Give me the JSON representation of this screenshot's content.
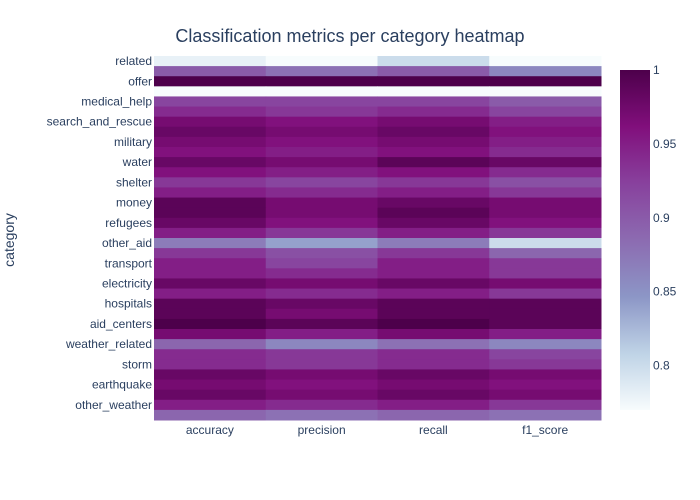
{
  "chart_data": {
    "type": "heatmap",
    "title": "Classification metrics per category heatmap",
    "xlabel": "",
    "ylabel": "category",
    "columns": [
      "accuracy",
      "precision",
      "recall",
      "f1_score"
    ],
    "rows": [
      {
        "category": "related",
        "values": [
          0.78,
          0.77,
          0.8,
          0.77
        ]
      },
      {
        "category": "",
        "values": [
          0.9,
          0.88,
          0.9,
          0.86
        ]
      },
      {
        "category": "offer",
        "values": [
          1.0,
          1.0,
          1.0,
          1.0
        ]
      },
      {
        "category": "",
        "values": [
          0.77,
          0.77,
          0.77,
          0.77
        ]
      },
      {
        "category": "medical_help",
        "values": [
          0.92,
          0.92,
          0.92,
          0.9
        ]
      },
      {
        "category": "",
        "values": [
          0.94,
          0.93,
          0.94,
          0.92
        ]
      },
      {
        "category": "search_and_rescue",
        "values": [
          0.97,
          0.96,
          0.97,
          0.95
        ]
      },
      {
        "category": "",
        "values": [
          0.98,
          0.97,
          0.98,
          0.96
        ]
      },
      {
        "category": "military",
        "values": [
          0.97,
          0.96,
          0.97,
          0.95
        ]
      },
      {
        "category": "",
        "values": [
          0.96,
          0.95,
          0.96,
          0.94
        ]
      },
      {
        "category": "water",
        "values": [
          0.98,
          0.97,
          0.99,
          0.98
        ]
      },
      {
        "category": "",
        "values": [
          0.96,
          0.95,
          0.96,
          0.94
        ]
      },
      {
        "category": "shelter",
        "values": [
          0.93,
          0.92,
          0.93,
          0.91
        ]
      },
      {
        "category": "",
        "values": [
          0.95,
          0.94,
          0.95,
          0.93
        ]
      },
      {
        "category": "money",
        "values": [
          0.99,
          0.97,
          0.98,
          0.97
        ]
      },
      {
        "category": "",
        "values": [
          0.99,
          0.97,
          0.99,
          0.97
        ]
      },
      {
        "category": "refugees",
        "values": [
          0.98,
          0.96,
          0.98,
          0.96
        ]
      },
      {
        "category": "",
        "values": [
          0.95,
          0.93,
          0.95,
          0.93
        ]
      },
      {
        "category": "other_aid",
        "values": [
          0.87,
          0.84,
          0.87,
          0.8
        ]
      },
      {
        "category": "",
        "values": [
          0.93,
          0.91,
          0.93,
          0.89
        ]
      },
      {
        "category": "transport",
        "values": [
          0.95,
          0.92,
          0.95,
          0.93
        ]
      },
      {
        "category": "",
        "values": [
          0.95,
          0.94,
          0.95,
          0.93
        ]
      },
      {
        "category": "electricity",
        "values": [
          0.98,
          0.97,
          0.98,
          0.97
        ]
      },
      {
        "category": "",
        "values": [
          0.95,
          0.94,
          0.95,
          0.93
        ]
      },
      {
        "category": "hospitals",
        "values": [
          0.99,
          0.98,
          0.99,
          0.99
        ]
      },
      {
        "category": "",
        "values": [
          0.99,
          0.97,
          0.99,
          0.99
        ]
      },
      {
        "category": "aid_centers",
        "values": [
          1.0,
          0.99,
          1.0,
          0.99
        ]
      },
      {
        "category": "",
        "values": [
          0.97,
          0.95,
          0.97,
          0.95
        ]
      },
      {
        "category": "weather_related",
        "values": [
          0.89,
          0.86,
          0.88,
          0.86
        ]
      },
      {
        "category": "",
        "values": [
          0.94,
          0.93,
          0.94,
          0.92
        ]
      },
      {
        "category": "storm",
        "values": [
          0.94,
          0.93,
          0.94,
          0.93
        ]
      },
      {
        "category": "",
        "values": [
          0.98,
          0.97,
          0.98,
          0.97
        ]
      },
      {
        "category": "earthquake",
        "values": [
          0.97,
          0.96,
          0.97,
          0.96
        ]
      },
      {
        "category": "",
        "values": [
          0.98,
          0.97,
          0.98,
          0.97
        ]
      },
      {
        "category": "other_weather",
        "values": [
          0.95,
          0.94,
          0.95,
          0.93
        ]
      },
      {
        "category": "",
        "values": [
          0.89,
          0.88,
          0.89,
          0.88
        ]
      }
    ],
    "colorbar": {
      "min": 0.77,
      "max": 1.0,
      "ticks": [
        1,
        0.95,
        0.9,
        0.85,
        0.8
      ],
      "tick_labels": [
        "1",
        "0.95",
        "0.9",
        "0.85",
        "0.8"
      ],
      "colorscale": [
        "#f7fcfd",
        "#bfd3e6",
        "#8c96c6",
        "#8c6bb1",
        "#88419d",
        "#810f7c",
        "#4d004b"
      ]
    },
    "grid": false,
    "legend": "colorbar-right"
  }
}
